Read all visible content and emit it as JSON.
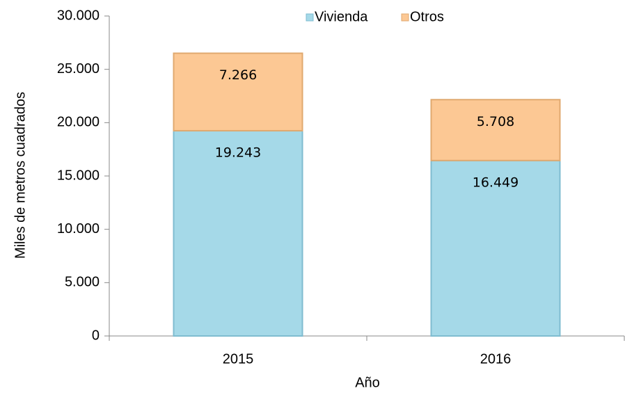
{
  "chart_data": {
    "type": "bar",
    "stacked": true,
    "categories": [
      "2015",
      "2016"
    ],
    "series": [
      {
        "name": "Vivienda",
        "color": "#a5d9e8",
        "values": [
          19243,
          16449
        ],
        "value_labels": [
          "19.243",
          "16.449"
        ]
      },
      {
        "name": "Otros",
        "color": "#fcc894",
        "values": [
          7266,
          5708
        ],
        "value_labels": [
          "7.266",
          "5.708"
        ]
      }
    ],
    "ylim": [
      0,
      30000
    ],
    "yticks": [
      0,
      {
        "value": 5000,
        "label": "5.000"
      },
      {
        "value": 10000,
        "label": "10.000"
      },
      {
        "value": 15000,
        "label": "15.000"
      },
      {
        "value": 20000,
        "label": "20.000"
      },
      {
        "value": 25000,
        "label": "25.000"
      },
      {
        "value": 30000,
        "label": "30.000"
      }
    ],
    "ylabel": "Miles de metros cuadrados",
    "xlabel": "Año",
    "legend": "top"
  }
}
